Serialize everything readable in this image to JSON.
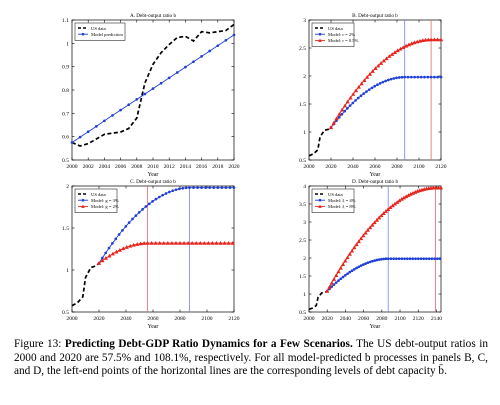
{
  "caption": {
    "label": "Figure 13:",
    "title": "Predicting Debt-GDP Ratio Dynamics for a Few Scenarios.",
    "body": "The US debt-output ratios in 2000 and 2020 are 57.5% and 108.1%, respectively. For all model-predicted b processes in panels B, C, and D, the left-end points of the horizontal lines are the corresponding levels of debt capacity b̄."
  },
  "colors": {
    "data": "#000000",
    "blue": "#1f3fd6",
    "red": "#e8231c",
    "vline_blue": "#6f86e8",
    "vline_red": "#e26b63"
  },
  "chart_data": [
    {
      "type": "line",
      "title": "A. Debt-output ratio b",
      "xlabel": "Year",
      "xlim": [
        2000,
        2020
      ],
      "ylim": [
        0.5,
        1.1
      ],
      "xticks": [
        2000,
        2002,
        2004,
        2006,
        2008,
        2010,
        2012,
        2014,
        2016,
        2018,
        2020
      ],
      "yticks": [
        0.5,
        0.6,
        0.7,
        0.8,
        0.9,
        1,
        1.1
      ],
      "legend_position": "top-left",
      "series": [
        {
          "name": "US data",
          "style": "dashed",
          "color": "#000000",
          "x": [
            2000,
            2001,
            2002,
            2003,
            2004,
            2005,
            2006,
            2007,
            2008,
            2009,
            2010,
            2011,
            2012,
            2013,
            2014,
            2015,
            2016,
            2017,
            2018,
            2019,
            2020
          ],
          "y": [
            0.575,
            0.56,
            0.57,
            0.59,
            0.61,
            0.615,
            0.62,
            0.635,
            0.68,
            0.83,
            0.91,
            0.96,
            0.995,
            1.025,
            1.03,
            1.01,
            1.05,
            1.045,
            1.05,
            1.055,
            1.081
          ]
        },
        {
          "name": "Model prediction",
          "style": "solid-marker",
          "marker": "dot",
          "color": "#1f3fd6",
          "x": [
            2000,
            2001,
            2002,
            2003,
            2004,
            2005,
            2006,
            2007,
            2008,
            2009,
            2010,
            2011,
            2012,
            2013,
            2014,
            2015,
            2016,
            2017,
            2018,
            2019,
            2020
          ],
          "y": [
            0.575,
            0.598,
            0.621,
            0.644,
            0.668,
            0.691,
            0.714,
            0.737,
            0.76,
            0.783,
            0.806,
            0.829,
            0.852,
            0.875,
            0.898,
            0.921,
            0.944,
            0.967,
            0.99,
            1.013,
            1.036
          ]
        }
      ],
      "vlines": []
    },
    {
      "type": "line",
      "title": "B. Debt-output ratio b",
      "xlabel": "Year",
      "xlim": [
        2000,
        2120
      ],
      "ylim": [
        0.5,
        3
      ],
      "xticks": [
        2000,
        2020,
        2040,
        2060,
        2080,
        2100,
        2120
      ],
      "yticks": [
        0.5,
        1,
        1.5,
        2,
        2.5,
        3
      ],
      "legend_position": "top-left",
      "series": [
        {
          "name": "US data",
          "style": "dashed",
          "color": "#000000",
          "x": [
            2000,
            2004,
            2008,
            2010,
            2014,
            2018,
            2020
          ],
          "y": [
            0.575,
            0.61,
            0.68,
            0.91,
            1.03,
            1.05,
            1.081
          ]
        },
        {
          "name": "Model: r = 2%",
          "style": "solid-marker",
          "marker": "dot",
          "color": "#1f3fd6",
          "model": {
            "start": 2020,
            "b0": 1.081,
            "end": 2087,
            "bbar": 1.98
          }
        },
        {
          "name": "Model: r = 0.5%",
          "style": "solid-marker",
          "marker": "triangle",
          "color": "#e8231c",
          "model": {
            "start": 2020,
            "b0": 1.081,
            "end": 2111,
            "bbar": 2.65
          }
        }
      ],
      "vlines": [
        {
          "x": 2087,
          "color": "#6f86e8"
        },
        {
          "x": 2111,
          "color": "#e26b63"
        }
      ]
    },
    {
      "type": "line",
      "title": "C. Debt-output ratio b",
      "xlabel": "Year",
      "xlim": [
        2000,
        2120
      ],
      "ylim": [
        0.5,
        2
      ],
      "xticks": [
        2000,
        2020,
        2040,
        2060,
        2080,
        2100,
        2120
      ],
      "yticks": [
        0.5,
        1,
        1.5,
        2
      ],
      "legend_position": "top-left",
      "series": [
        {
          "name": "US data",
          "style": "dashed",
          "color": "#000000",
          "x": [
            2000,
            2004,
            2008,
            2010,
            2014,
            2018,
            2020
          ],
          "y": [
            0.575,
            0.61,
            0.68,
            0.91,
            1.03,
            1.05,
            1.081
          ]
        },
        {
          "name": "Model: g = 3%",
          "style": "solid-marker",
          "marker": "dot",
          "color": "#1f3fd6",
          "model": {
            "start": 2020,
            "b0": 1.081,
            "end": 2087,
            "bbar": 1.98
          }
        },
        {
          "name": "Model: g = 2%",
          "style": "solid-marker",
          "marker": "triangle",
          "color": "#e8231c",
          "model": {
            "start": 2020,
            "b0": 1.081,
            "end": 2056,
            "bbar": 1.32
          }
        }
      ],
      "vlines": [
        {
          "x": 2087,
          "color": "#6f86e8"
        },
        {
          "x": 2056,
          "color": "#e26b63"
        }
      ]
    },
    {
      "type": "line",
      "title": "D. Debt-output ratio b",
      "xlabel": "Year",
      "xlim": [
        2000,
        2145
      ],
      "ylim": [
        0.5,
        4
      ],
      "xticks": [
        2000,
        2020,
        2040,
        2060,
        2080,
        2100,
        2120,
        2140
      ],
      "yticks": [
        0.5,
        1,
        1.5,
        2,
        2.5,
        3,
        3.5,
        4
      ],
      "legend_position": "top-left",
      "series": [
        {
          "name": "US data",
          "style": "dashed",
          "color": "#000000",
          "x": [
            2000,
            2004,
            2008,
            2010,
            2014,
            2018,
            2020
          ],
          "y": [
            0.575,
            0.61,
            0.68,
            0.91,
            1.03,
            1.05,
            1.081
          ]
        },
        {
          "name": "Model: ξ = 4%",
          "style": "solid-marker",
          "marker": "dot",
          "color": "#1f3fd6",
          "model": {
            "start": 2020,
            "b0": 1.081,
            "end": 2087,
            "bbar": 1.98
          }
        },
        {
          "name": "Model: ξ = 8%",
          "style": "solid-marker",
          "marker": "triangle",
          "color": "#e8231c",
          "model": {
            "start": 2020,
            "b0": 1.081,
            "end": 2139,
            "bbar": 3.95
          }
        }
      ],
      "vlines": [
        {
          "x": 2087,
          "color": "#6f86e8"
        },
        {
          "x": 2139,
          "color": "#e26b63"
        }
      ]
    }
  ]
}
